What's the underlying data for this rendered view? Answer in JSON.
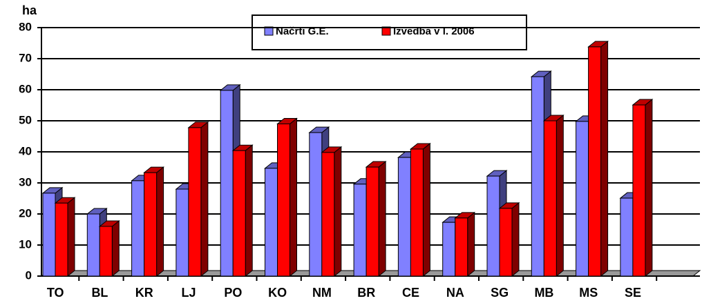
{
  "chart_data": {
    "type": "bar",
    "ylabel": "ha",
    "categories": [
      "TO",
      "BL",
      "KR",
      "LJ",
      "PO",
      "KO",
      "NM",
      "BR",
      "CE",
      "NA",
      "SG",
      "MB",
      "MS",
      "SE"
    ],
    "series": [
      {
        "name": "Načrti G.E.",
        "color": "#8080ff",
        "values": [
          26.7,
          20,
          30.7,
          28,
          59.8,
          34.7,
          46.2,
          29.6,
          38.2,
          17.3,
          32.2,
          64.2,
          49.8,
          25.1
        ]
      },
      {
        "name": "Izvedba v l. 2006",
        "color": "#ff0000",
        "values": [
          23.5,
          16,
          33.3,
          47.8,
          40.4,
          49,
          39.8,
          35.1,
          40.9,
          18.7,
          21.8,
          50,
          73.8,
          55.1
        ]
      }
    ],
    "ylim": [
      0,
      80
    ],
    "yticks": [
      0,
      10,
      20,
      30,
      40,
      50,
      60,
      70,
      80
    ],
    "grid": true,
    "legend": "top"
  }
}
